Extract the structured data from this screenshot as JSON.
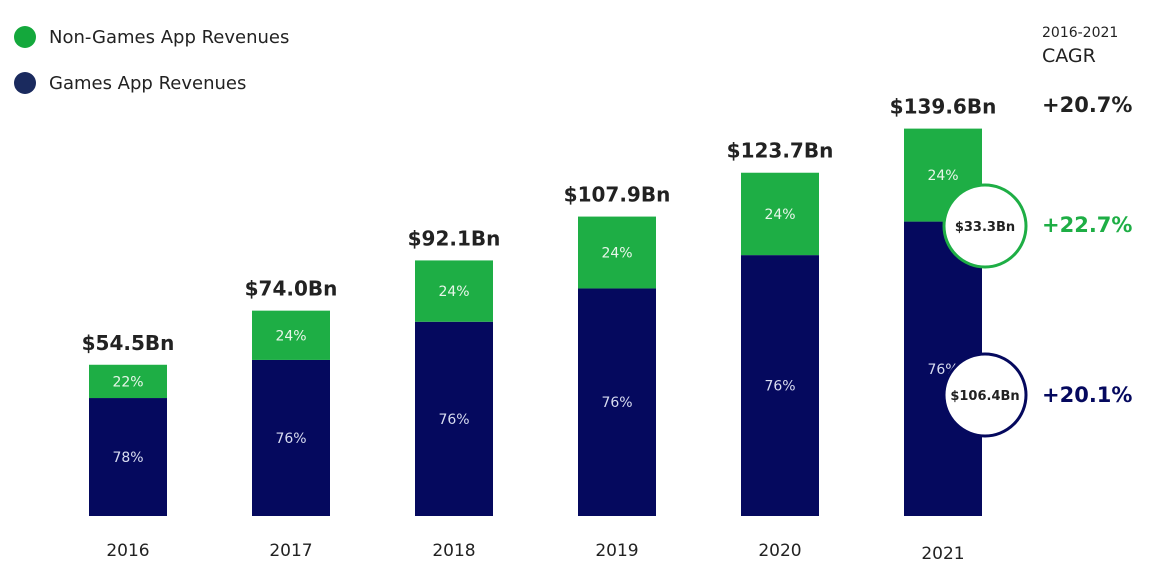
{
  "chart_data": {
    "type": "bar",
    "stacked": true,
    "categories": [
      "2016",
      "2017",
      "2018",
      "2019",
      "2020",
      "2021"
    ],
    "totals": [
      54.5,
      74.0,
      92.1,
      107.9,
      123.7,
      139.6
    ],
    "total_labels": [
      "$54.5Bn",
      "$74.0Bn",
      "$92.1Bn",
      "$107.9Bn",
      "$123.7Bn",
      "$139.6Bn"
    ],
    "series": [
      {
        "name": "Games App Revenues",
        "share_pct": [
          78,
          76,
          76,
          76,
          76,
          76
        ],
        "labels": [
          "78%",
          "76%",
          "76%",
          "76%",
          "76%",
          "76%"
        ],
        "color": "#05095e"
      },
      {
        "name": "Non-Games App Revenues",
        "share_pct": [
          22,
          24,
          24,
          24,
          24,
          24
        ],
        "labels": [
          "22%",
          "24%",
          "24%",
          "24%",
          "24%",
          "24%"
        ],
        "color": "#1eae45"
      }
    ],
    "legend_position": "top-left",
    "legend_colors": {
      "non_games": "#14a83c",
      "games": "#1a2a5e"
    },
    "grid": false,
    "callouts_2021": {
      "non_games": "$33.3Bn",
      "games": "$106.4Bn"
    },
    "cagr": {
      "heading_period": "2016-2021",
      "heading": "CAGR",
      "total": "+20.7%",
      "non_games": "+22.7%",
      "games": "+20.1%"
    }
  }
}
